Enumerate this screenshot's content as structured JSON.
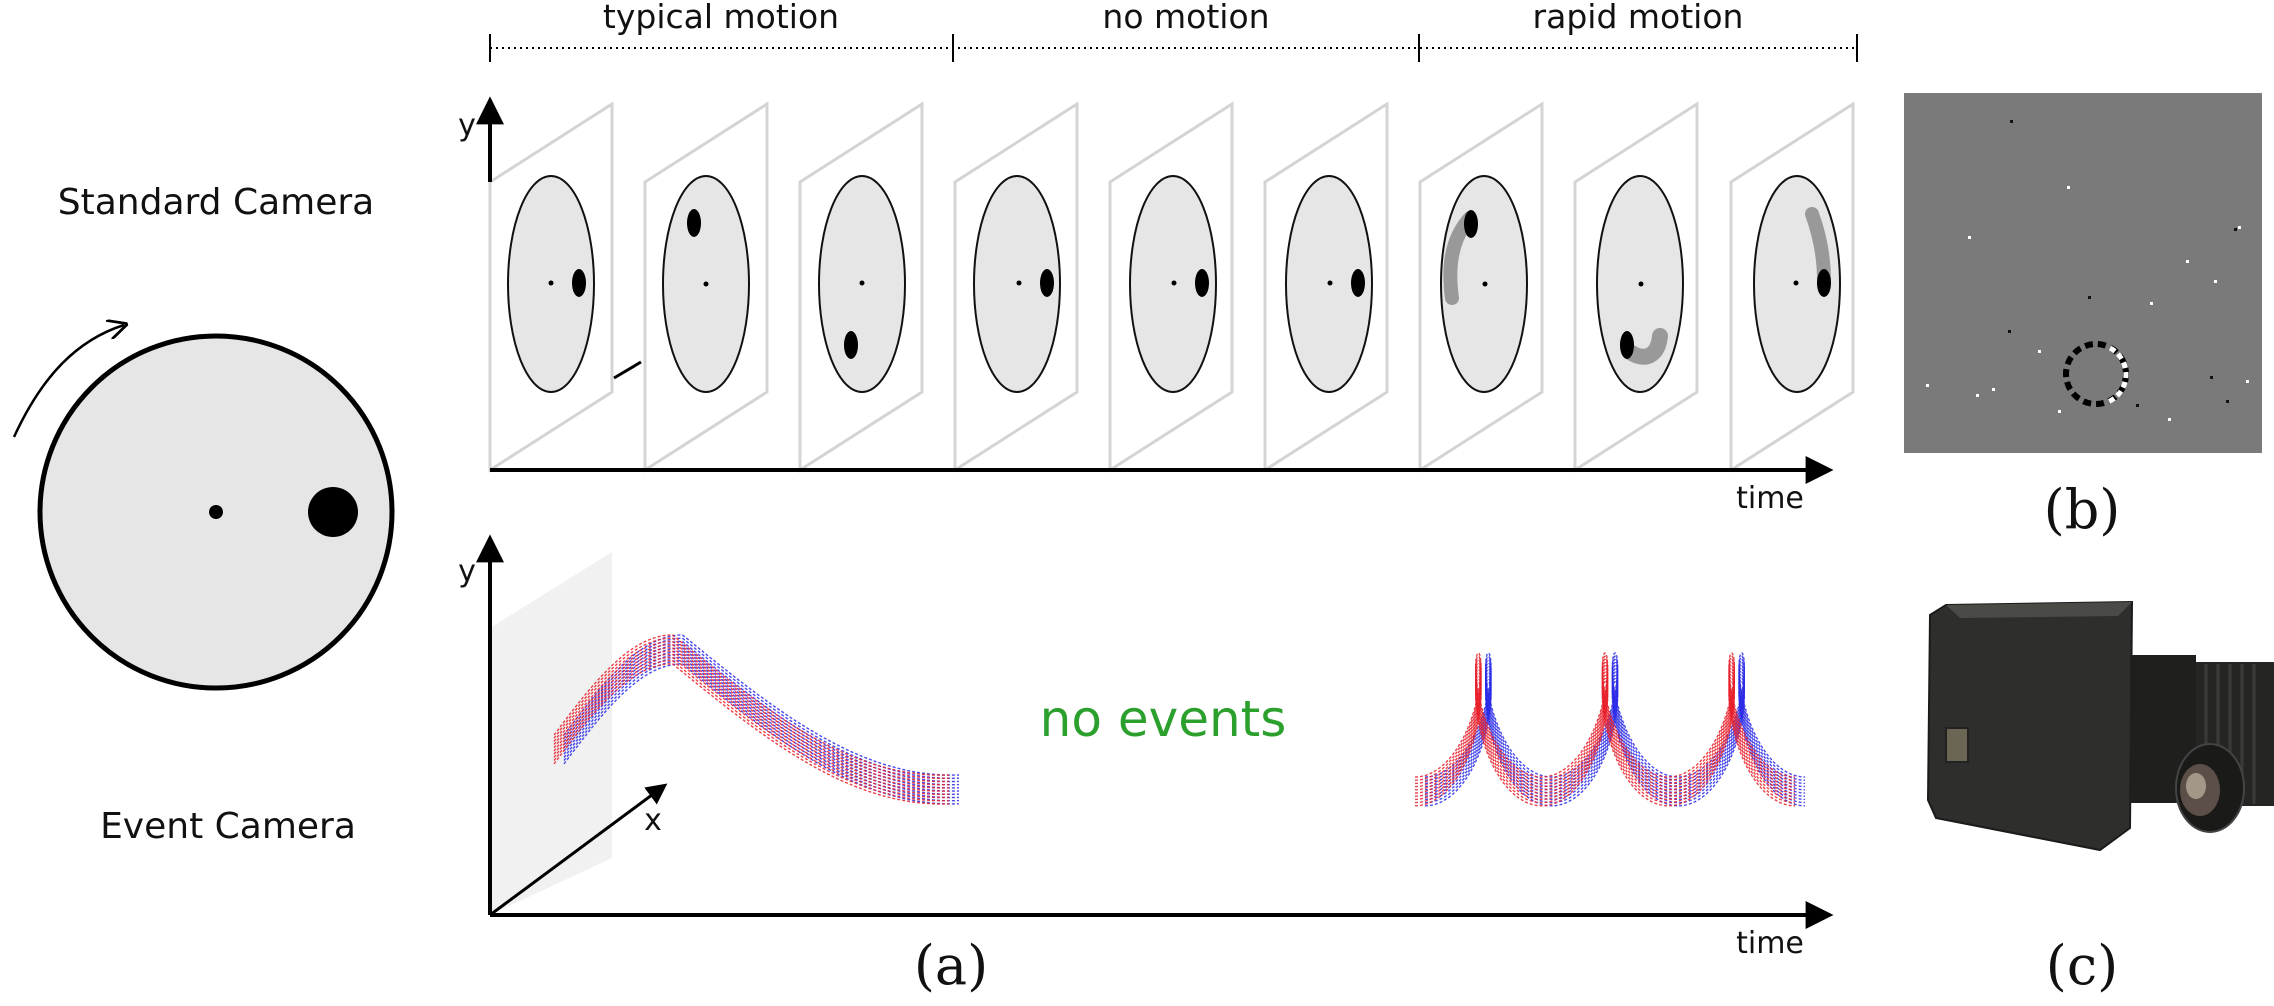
{
  "segments": [
    "typical motion",
    "no motion",
    "rapid motion"
  ],
  "left_labels": {
    "standard": "Standard Camera",
    "event": "Event Camera"
  },
  "axes": {
    "y": "y",
    "x": "x",
    "time": "time"
  },
  "annotation": "no events",
  "panel_labels": {
    "a": "(a)",
    "b": "(b)",
    "c": "(c)"
  },
  "colors": {
    "positive_events": "#e8202a",
    "negative_events": "#2a2ae8",
    "annotation": "#2ca02c",
    "disk_fill": "#e6e6e6"
  }
}
